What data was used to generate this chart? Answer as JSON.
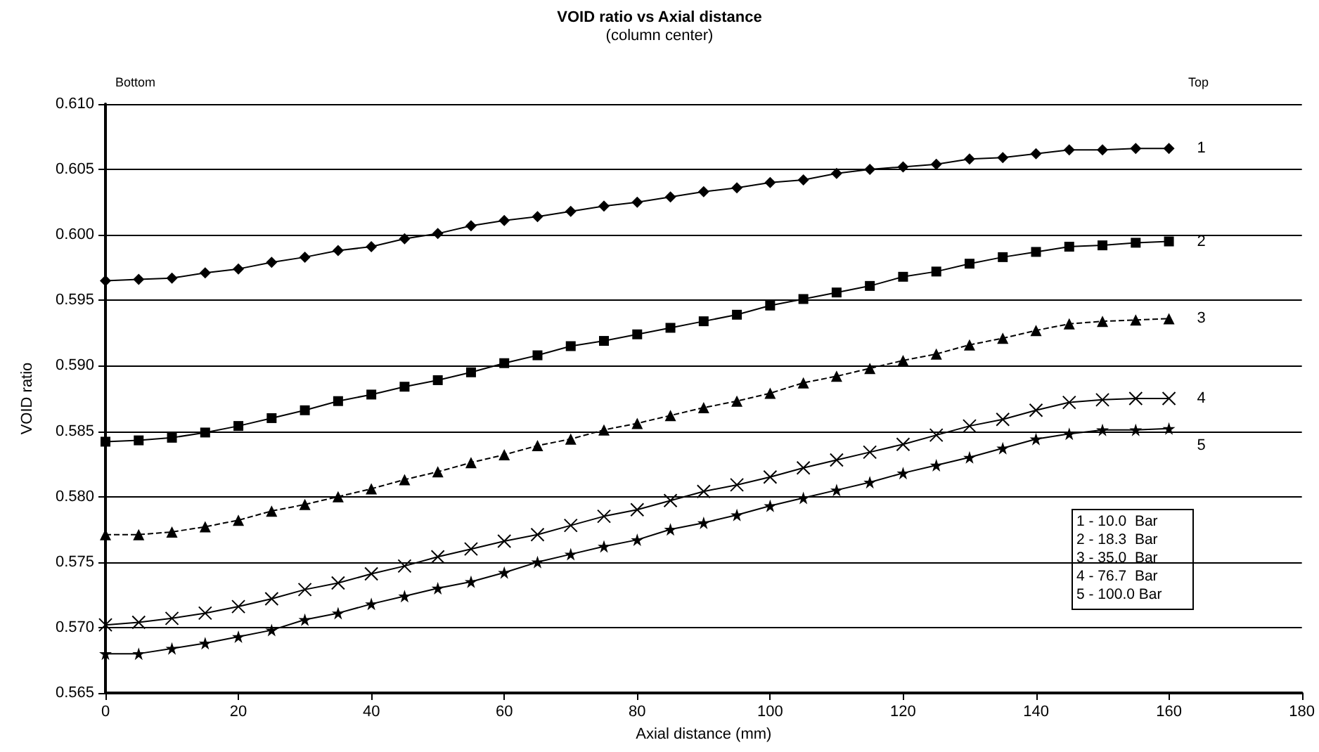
{
  "chart_data": {
    "type": "line",
    "title": "VOID ratio vs Axial distance",
    "subtitle": "(column center)",
    "xlabel": "Axial distance (mm)",
    "ylabel": "VOID ratio",
    "annotations": [
      "Bottom",
      "Top",
      "1 - 10.0  Bar",
      "2 - 18.3  Bar",
      "3 - 35.0  Bar",
      "4 - 76.7  Bar",
      "5 - 100.0 Bar"
    ],
    "x": [
      0,
      5,
      10,
      15,
      20,
      25,
      30,
      35,
      40,
      45,
      50,
      55,
      60,
      65,
      70,
      75,
      80,
      85,
      90,
      95,
      100,
      105,
      110,
      115,
      120,
      125,
      130,
      135,
      140,
      145,
      150,
      155,
      160
    ],
    "series": [
      {
        "name": "1",
        "color": "#000000",
        "marker": "diamond",
        "line_style": "solid",
        "values": [
          0.5965,
          0.5966,
          0.5967,
          0.5971,
          0.5974,
          0.5979,
          0.5983,
          0.5988,
          0.5991,
          0.5997,
          0.6001,
          0.6007,
          0.6011,
          0.6014,
          0.6018,
          0.6022,
          0.6025,
          0.6029,
          0.6033,
          0.6036,
          0.604,
          0.6042,
          0.6047,
          0.605,
          0.6052,
          0.6054,
          0.6058,
          0.6059,
          0.6062,
          0.6065,
          0.6065,
          0.6066,
          0.6066
        ]
      },
      {
        "name": "2",
        "color": "#000000",
        "marker": "square",
        "line_style": "solid",
        "values": [
          0.5842,
          0.5843,
          0.5845,
          0.5849,
          0.5854,
          0.586,
          0.5866,
          0.5873,
          0.5878,
          0.5884,
          0.5889,
          0.5895,
          0.5902,
          0.5908,
          0.5915,
          0.5919,
          0.5924,
          0.5929,
          0.5934,
          0.5939,
          0.5946,
          0.5951,
          0.5956,
          0.5961,
          0.5968,
          0.5972,
          0.5978,
          0.5983,
          0.5987,
          0.5991,
          0.5992,
          0.5994,
          0.5995
        ]
      },
      {
        "name": "3",
        "color": "#000000",
        "marker": "triangle",
        "line_style": "dashed",
        "values": [
          0.5771,
          0.5771,
          0.5773,
          0.5777,
          0.5782,
          0.5789,
          0.5794,
          0.58,
          0.5806,
          0.5813,
          0.5819,
          0.5826,
          0.5832,
          0.5839,
          0.5844,
          0.5851,
          0.5856,
          0.5862,
          0.5868,
          0.5873,
          0.5879,
          0.5887,
          0.5892,
          0.5898,
          0.5904,
          0.5909,
          0.5916,
          0.5921,
          0.5927,
          0.5932,
          0.5934,
          0.5935,
          0.5936
        ]
      },
      {
        "name": "4",
        "color": "#000000",
        "marker": "cross",
        "line_style": "solid",
        "values": [
          0.5702,
          0.5704,
          0.5707,
          0.5711,
          0.5716,
          0.5722,
          0.5729,
          0.5734,
          0.5741,
          0.5747,
          0.5754,
          0.576,
          0.5766,
          0.5771,
          0.5778,
          0.5785,
          0.579,
          0.5797,
          0.5804,
          0.5809,
          0.5815,
          0.5822,
          0.5828,
          0.5834,
          0.584,
          0.5847,
          0.5854,
          0.5859,
          0.5866,
          0.5872,
          0.5874,
          0.5875,
          0.5875
        ]
      },
      {
        "name": "5",
        "color": "#000000",
        "marker": "star",
        "line_style": "solid",
        "values": [
          0.568,
          0.568,
          0.5684,
          0.5688,
          0.5693,
          0.5698,
          0.5706,
          0.5711,
          0.5718,
          0.5724,
          0.573,
          0.5735,
          0.5742,
          0.575,
          0.5756,
          0.5762,
          0.5767,
          0.5775,
          0.578,
          0.5786,
          0.5793,
          0.5799,
          0.5805,
          0.5811,
          0.5818,
          0.5824,
          0.583,
          0.5837,
          0.5844,
          0.5848,
          0.5851,
          0.5851,
          0.5852
        ]
      }
    ],
    "xlim": [
      0,
      180
    ],
    "xticks": [
      0,
      20,
      40,
      60,
      80,
      100,
      120,
      140,
      160,
      180
    ],
    "ylim": [
      0.565,
      0.61
    ],
    "yticks": [
      {
        "value": 0.565,
        "label": "0.565"
      },
      {
        "value": 0.57,
        "label": "0.570"
      },
      {
        "value": 0.575,
        "label": "0.575"
      },
      {
        "value": 0.58,
        "label": "0.580"
      },
      {
        "value": 0.585,
        "label": "0.585"
      },
      {
        "value": 0.59,
        "label": "0.590"
      },
      {
        "value": 0.595,
        "label": "0.595"
      },
      {
        "value": 0.6,
        "label": "0.600"
      },
      {
        "value": 0.605,
        "label": "0.605"
      },
      {
        "value": 0.61,
        "label": "0.610"
      }
    ],
    "grid": "y",
    "legend": false
  }
}
